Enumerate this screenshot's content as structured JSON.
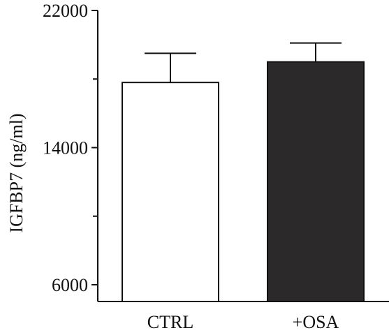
{
  "chart_data": {
    "type": "bar",
    "categories": [
      "CTRL",
      "+OSA"
    ],
    "values": [
      17800,
      19000
    ],
    "error_upper": [
      19500,
      20100
    ],
    "bar_fill": [
      "#ffffff",
      "#2b2929"
    ],
    "ylabel": "IGFBP7 (ng/ml)",
    "xlabel": "",
    "title": "",
    "ylim": [
      5000,
      22000
    ],
    "yticks": [
      6000,
      14000,
      22000
    ],
    "ytick_labels": [
      "6000",
      "14000",
      "22000"
    ],
    "minor_yticks": [
      10000,
      18000
    ],
    "grid": false,
    "legend": false
  }
}
